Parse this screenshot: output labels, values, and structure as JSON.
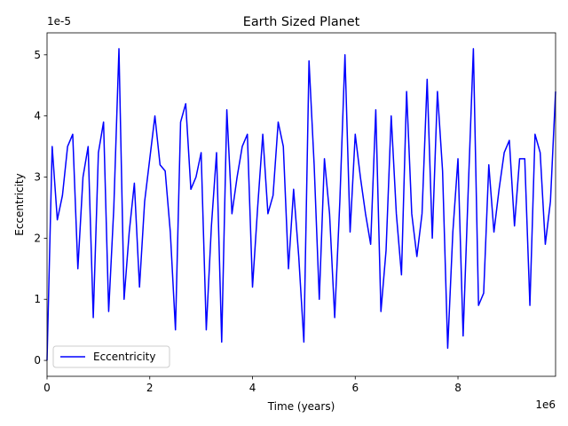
{
  "chart_data": {
    "type": "line",
    "title": "Earth Sized Planet",
    "xlabel": "Time (years)",
    "ylabel": "Eccentricity",
    "x_offset_text": "1e6",
    "y_offset_text": "1e-5",
    "x_scale": 1000000,
    "y_scale": 1e-05,
    "xlim": [
      0,
      9900000
    ],
    "ylim": [
      -2.6e-06,
      5.36e-05
    ],
    "x_ticks": [
      0,
      2000000,
      4000000,
      6000000,
      8000000
    ],
    "x_tick_labels": [
      "0",
      "2",
      "4",
      "6",
      "8"
    ],
    "y_ticks": [
      0,
      1e-05,
      2e-05,
      3e-05,
      4e-05,
      5e-05
    ],
    "y_tick_labels": [
      "0",
      "1",
      "2",
      "3",
      "4",
      "5"
    ],
    "grid": false,
    "legend_position": "lower-left",
    "series": [
      {
        "name": "Eccentricity",
        "color": "#0000ff",
        "x": [
          0,
          100000,
          200000,
          300000,
          400000,
          500000,
          600000,
          700000,
          800000,
          900000,
          1000000,
          1100000,
          1200000,
          1300000,
          1400000,
          1500000,
          1600000,
          1700000,
          1800000,
          1900000,
          2000000,
          2100000,
          2200000,
          2300000,
          2400000,
          2500000,
          2600000,
          2700000,
          2800000,
          2900000,
          3000000,
          3100000,
          3200000,
          3300000,
          3400000,
          3500000,
          3600000,
          3700000,
          3800000,
          3900000,
          4000000,
          4100000,
          4200000,
          4300000,
          4400000,
          4500000,
          4600000,
          4700000,
          4800000,
          4900000,
          5000000,
          5100000,
          5200000,
          5300000,
          5400000,
          5500000,
          5600000,
          5700000,
          5800000,
          5900000,
          6000000,
          6100000,
          6200000,
          6300000,
          6400000,
          6500000,
          6600000,
          6700000,
          6800000,
          6900000,
          7000000,
          7100000,
          7200000,
          7300000,
          7400000,
          7500000,
          7600000,
          7700000,
          7800000,
          7900000,
          8000000,
          8100000,
          8200000,
          8300000,
          8400000,
          8500000,
          8600000,
          8700000,
          8800000,
          8900000,
          9000000,
          9100000,
          9200000,
          9300000,
          9400000,
          9500000,
          9600000,
          9700000,
          9800000,
          9900000
        ],
        "y": [
          0,
          3.5e-05,
          2.3e-05,
          2.7e-05,
          3.5e-05,
          3.7e-05,
          1.5e-05,
          3e-05,
          3.5e-05,
          7e-06,
          3.4e-05,
          3.9e-05,
          8e-06,
          2.5e-05,
          5.1e-05,
          1e-05,
          2.1e-05,
          2.9e-05,
          1.2e-05,
          2.6e-05,
          3.3e-05,
          4e-05,
          3.2e-05,
          3.1e-05,
          2.1e-05,
          5e-06,
          3.9e-05,
          4.2e-05,
          2.8e-05,
          3e-05,
          3.4e-05,
          5e-06,
          2.2e-05,
          3.4e-05,
          3e-06,
          4.1e-05,
          2.4e-05,
          3e-05,
          3.5e-05,
          3.7e-05,
          1.2e-05,
          2.5e-05,
          3.7e-05,
          2.4e-05,
          2.7e-05,
          3.9e-05,
          3.5e-05,
          1.5e-05,
          2.8e-05,
          1.7e-05,
          3e-06,
          4.9e-05,
          3.2e-05,
          1e-05,
          3.3e-05,
          2.4e-05,
          7e-06,
          2.6e-05,
          5e-05,
          2.1e-05,
          3.7e-05,
          3e-05,
          2.4e-05,
          1.9e-05,
          4.1e-05,
          8e-06,
          1.8e-05,
          4e-05,
          2.4e-05,
          1.4e-05,
          4.4e-05,
          2.4e-05,
          1.7e-05,
          2.4e-05,
          4.6e-05,
          2e-05,
          4.4e-05,
          3.1e-05,
          2e-06,
          2.1e-05,
          3.3e-05,
          4e-06,
          2.8e-05,
          5.1e-05,
          9e-06,
          1.1e-05,
          3.2e-05,
          2.1e-05,
          2.8e-05,
          3.4e-05,
          3.6e-05,
          2.2e-05,
          3.3e-05,
          3.3e-05,
          9e-06,
          3.7e-05,
          3.4e-05,
          1.9e-05,
          2.6e-05,
          4.4e-05
        ]
      }
    ]
  }
}
